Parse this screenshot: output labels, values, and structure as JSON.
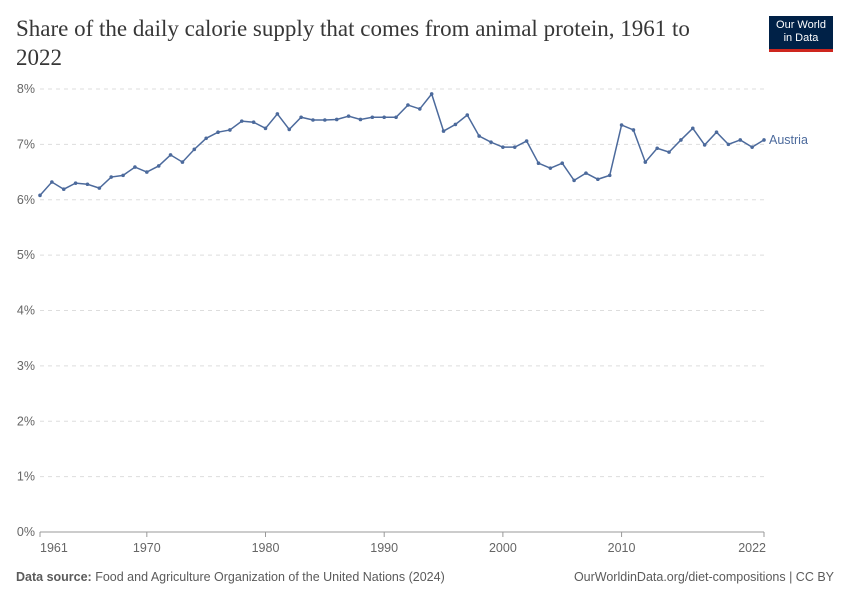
{
  "title": "Share of the daily calorie supply that comes from animal protein, 1961 to 2022",
  "logo": {
    "line1": "Our World",
    "line2": "in Data"
  },
  "footer": {
    "source_label": "Data source:",
    "source": "Food and Agriculture Organization of the United Nations (2024)",
    "url": "OurWorldinData.org/diet-compositions | CC BY"
  },
  "colors": {
    "series": "#4c6a9c",
    "grid": "#dddddd",
    "text": "#666666"
  },
  "chart_data": {
    "type": "line",
    "title": "Share of the daily calorie supply that comes from animal protein, 1961 to 2022",
    "xlim": [
      1961,
      2022
    ],
    "ylim": [
      0,
      8
    ],
    "y_ticks": [
      "0%",
      "1%",
      "2%",
      "3%",
      "4%",
      "5%",
      "6%",
      "7%",
      "8%"
    ],
    "x_ticks": [
      "1961",
      "1970",
      "1980",
      "1990",
      "2000",
      "2010",
      "2022"
    ],
    "grid": "horizontal dashed",
    "legend": "inline-right",
    "series": [
      {
        "name": "Austria",
        "x": [
          1961,
          1962,
          1963,
          1964,
          1965,
          1966,
          1967,
          1968,
          1969,
          1970,
          1971,
          1972,
          1973,
          1974,
          1975,
          1976,
          1977,
          1978,
          1979,
          1980,
          1981,
          1982,
          1983,
          1984,
          1985,
          1986,
          1987,
          1988,
          1989,
          1990,
          1991,
          1992,
          1993,
          1994,
          1995,
          1996,
          1997,
          1998,
          1999,
          2000,
          2001,
          2002,
          2003,
          2004,
          2005,
          2006,
          2007,
          2008,
          2009,
          2010,
          2011,
          2012,
          2013,
          2014,
          2015,
          2016,
          2017,
          2018,
          2019,
          2020,
          2021,
          2022
        ],
        "values": [
          6.08,
          6.32,
          6.19,
          6.3,
          6.28,
          6.21,
          6.41,
          6.44,
          6.59,
          6.5,
          6.61,
          6.81,
          6.68,
          6.91,
          7.11,
          7.22,
          7.26,
          7.42,
          7.4,
          7.29,
          7.55,
          7.27,
          7.49,
          7.44,
          7.44,
          7.45,
          7.51,
          7.45,
          7.49,
          7.49,
          7.49,
          7.71,
          7.64,
          7.91,
          7.24,
          7.36,
          7.53,
          7.15,
          7.04,
          6.95,
          6.95,
          7.06,
          6.66,
          6.57,
          6.66,
          6.35,
          6.48,
          6.37,
          6.44,
          7.35,
          7.26,
          6.68,
          6.93,
          6.86,
          7.08,
          7.29,
          6.99,
          7.22,
          7.0,
          7.08,
          6.95,
          7.08
        ]
      }
    ]
  }
}
